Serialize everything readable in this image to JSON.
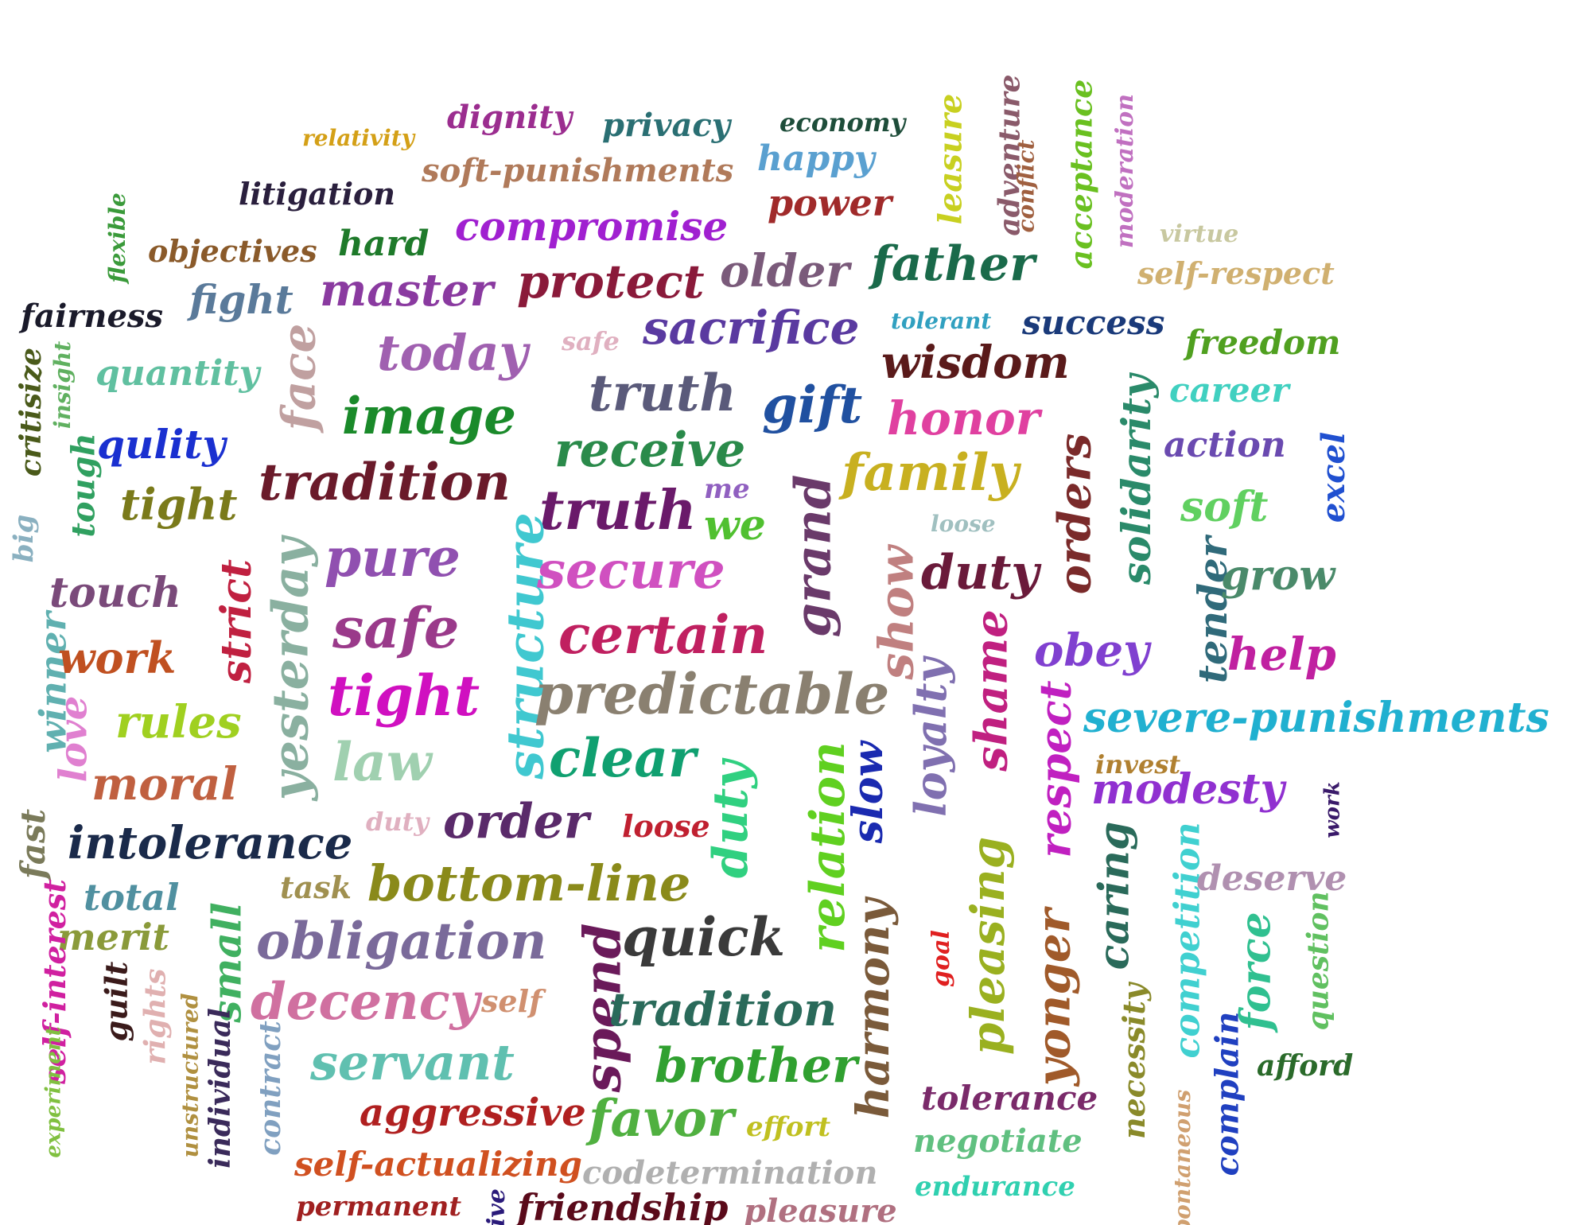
{
  "words": [
    {
      "text": "relativity",
      "color": "#d4a017"
    },
    {
      "text": "dignity",
      "color": "#9b2d8f"
    },
    {
      "text": "privacy",
      "color": "#2a6f73"
    },
    {
      "text": "economy",
      "color": "#1e4d3a"
    },
    {
      "text": "happy",
      "color": "#5aa0d0"
    },
    {
      "text": "soft-punishments",
      "color": "#b07a5a"
    },
    {
      "text": "litigation",
      "color": "#2a1f3d"
    },
    {
      "text": "power",
      "color": "#a02a2a"
    },
    {
      "text": "compromise",
      "color": "#a020d0"
    },
    {
      "text": "flexible",
      "color": "#3a9a3a"
    },
    {
      "text": "objectives",
      "color": "#8a5a2a"
    },
    {
      "text": "hard",
      "color": "#1e7a2a"
    },
    {
      "text": "leasure",
      "color": "#c8d020"
    },
    {
      "text": "adventure",
      "color": "#8a5a6a"
    },
    {
      "text": "conflict",
      "color": "#a06040"
    },
    {
      "text": "acceptance",
      "color": "#6ac020"
    },
    {
      "text": "moderation",
      "color": "#c070c0"
    },
    {
      "text": "virtue",
      "color": "#c8c8a0"
    },
    {
      "text": "self-respect",
      "color": "#d0b070"
    },
    {
      "text": "fairness",
      "color": "#1a1a2a"
    },
    {
      "text": "fight",
      "color": "#5a7a9a"
    },
    {
      "text": "master",
      "color": "#8a3aa0"
    },
    {
      "text": "protect",
      "color": "#8a1a3a"
    },
    {
      "text": "older",
      "color": "#7a5a7a"
    },
    {
      "text": "father",
      "color": "#1a6a4a"
    },
    {
      "text": "tolerant",
      "color": "#30a0c0"
    },
    {
      "text": "success",
      "color": "#1a3a7a"
    },
    {
      "text": "critisize",
      "color": "#4a5a1a"
    },
    {
      "text": "insight",
      "color": "#60b060"
    },
    {
      "text": "quantity",
      "color": "#60c0a0"
    },
    {
      "text": "face",
      "color": "#c0a0a0"
    },
    {
      "text": "today",
      "color": "#a060b0"
    },
    {
      "text": "safe",
      "color": "#e0b0c0"
    },
    {
      "text": "sacrifice",
      "color": "#5a3aa0"
    },
    {
      "text": "wisdom",
      "color": "#5a1a1a"
    },
    {
      "text": "freedom",
      "color": "#50a020"
    },
    {
      "text": "truth",
      "color": "#5a5a7a"
    },
    {
      "text": "image",
      "color": "#1a8a2a"
    },
    {
      "text": "gift",
      "color": "#2050a0"
    },
    {
      "text": "honor",
      "color": "#e040a0"
    },
    {
      "text": "career",
      "color": "#40d0c0"
    },
    {
      "text": "solidarity",
      "color": "#2a8a6a"
    },
    {
      "text": "tough",
      "color": "#30a060"
    },
    {
      "text": "qulity",
      "color": "#1a30d0"
    },
    {
      "text": "receive",
      "color": "#2a8a4a"
    },
    {
      "text": "action",
      "color": "#6a4ab0"
    },
    {
      "text": "excel",
      "color": "#2050d0"
    },
    {
      "text": "tradition",
      "color": "#6a1a2a"
    },
    {
      "text": "family",
      "color": "#c8b020"
    },
    {
      "text": "orders",
      "color": "#7a2a2a"
    },
    {
      "text": "tight",
      "color": "#7a7a1a"
    },
    {
      "text": "truth",
      "color": "#6a1a6a"
    },
    {
      "text": "me",
      "color": "#9060c0"
    },
    {
      "text": "big",
      "color": "#8ab0c0"
    },
    {
      "text": "grand",
      "color": "#6a3a6a"
    },
    {
      "text": "soft",
      "color": "#60d060"
    },
    {
      "text": "we",
      "color": "#50c030"
    },
    {
      "text": "loose",
      "color": "#a0c0c0"
    },
    {
      "text": "yesterday",
      "color": "#8ab0a0"
    },
    {
      "text": "pure",
      "color": "#9050b0"
    },
    {
      "text": "structure",
      "color": "#40c8d0"
    },
    {
      "text": "secure",
      "color": "#d050c0"
    },
    {
      "text": "show",
      "color": "#c08080"
    },
    {
      "text": "duty",
      "color": "#6a1a3a"
    },
    {
      "text": "tender",
      "color": "#306a7a"
    },
    {
      "text": "grow",
      "color": "#4a8a6a"
    },
    {
      "text": "strict",
      "color": "#c02040"
    },
    {
      "text": "touch",
      "color": "#7a4a7a"
    },
    {
      "text": "safe",
      "color": "#9a3a8a"
    },
    {
      "text": "certain",
      "color": "#c02060"
    },
    {
      "text": "winner",
      "color": "#60b0b0"
    },
    {
      "text": "work",
      "color": "#c05020"
    },
    {
      "text": "obey",
      "color": "#8040d0"
    },
    {
      "text": "help",
      "color": "#c020a0"
    },
    {
      "text": "shame",
      "color": "#c02080"
    },
    {
      "text": "loyalty",
      "color": "#8070b0"
    },
    {
      "text": "tight",
      "color": "#d010c0"
    },
    {
      "text": "predictable",
      "color": "#8a8070"
    },
    {
      "text": "love",
      "color": "#e080d0"
    },
    {
      "text": "rules",
      "color": "#a0d020"
    },
    {
      "text": "severe-punishments",
      "color": "#20b0d0"
    },
    {
      "text": "respect",
      "color": "#c020c0"
    },
    {
      "text": "law",
      "color": "#a0d0b0"
    },
    {
      "text": "clear",
      "color": "#10a070"
    },
    {
      "text": "relation",
      "color": "#60d020"
    },
    {
      "text": "slow",
      "color": "#1a2ab0"
    },
    {
      "text": "invest",
      "color": "#b08030"
    },
    {
      "text": "moral",
      "color": "#c06040"
    },
    {
      "text": "modesty",
      "color": "#9030d0"
    },
    {
      "text": "duty",
      "color": "#30d080"
    },
    {
      "text": "work",
      "color": "#3a1a6a"
    },
    {
      "text": "fast",
      "color": "#7a7a5a"
    },
    {
      "text": "duty",
      "color": "#e0b0c0"
    },
    {
      "text": "order",
      "color": "#5a2a6a"
    },
    {
      "text": "loose",
      "color": "#c02030"
    },
    {
      "text": "intolerance",
      "color": "#1a2a4a"
    },
    {
      "text": "caring",
      "color": "#2a6a5a"
    },
    {
      "text": "competition",
      "color": "#40d0d0"
    },
    {
      "text": "deserve",
      "color": "#b090b0"
    },
    {
      "text": "pleasing",
      "color": "#9ab020"
    },
    {
      "text": "total",
      "color": "#5090a0"
    },
    {
      "text": "task",
      "color": "#a09050"
    },
    {
      "text": "bottom-line",
      "color": "#8a8a1a"
    },
    {
      "text": "harmony",
      "color": "#7a5a3a"
    },
    {
      "text": "yonger",
      "color": "#a05a2a"
    },
    {
      "text": "merit",
      "color": "#8a9a3a"
    },
    {
      "text": "small",
      "color": "#40b060"
    },
    {
      "text": "obligation",
      "color": "#7a6a9a"
    },
    {
      "text": "spend",
      "color": "#6a1a5a"
    },
    {
      "text": "quick",
      "color": "#3a3a3a"
    },
    {
      "text": "force",
      "color": "#30c090"
    },
    {
      "text": "question",
      "color": "#60c060"
    },
    {
      "text": "self-interest",
      "color": "#d020a0"
    },
    {
      "text": "guilt",
      "color": "#3a1a1a"
    },
    {
      "text": "goal",
      "color": "#e02020"
    },
    {
      "text": "rights",
      "color": "#e0b0b0"
    },
    {
      "text": "decency",
      "color": "#d070a0"
    },
    {
      "text": "self",
      "color": "#d09070"
    },
    {
      "text": "tradition",
      "color": "#2a6a5a"
    },
    {
      "text": "necessity",
      "color": "#8a8a2a"
    },
    {
      "text": "experiment",
      "color": "#80c040"
    },
    {
      "text": "unstructured",
      "color": "#b09040"
    },
    {
      "text": "individual",
      "color": "#3a2a5a"
    },
    {
      "text": "contract",
      "color": "#80a0c0"
    },
    {
      "text": "servant",
      "color": "#60c0b0"
    },
    {
      "text": "brother",
      "color": "#30a030"
    },
    {
      "text": "complain",
      "color": "#2040c0"
    },
    {
      "text": "afford",
      "color": "#2a6a2a"
    },
    {
      "text": "tolerance",
      "color": "#7a2a6a"
    },
    {
      "text": "aggressive",
      "color": "#b02020"
    },
    {
      "text": "favor",
      "color": "#50b040"
    },
    {
      "text": "effort",
      "color": "#c0c020"
    },
    {
      "text": "negotiate",
      "color": "#60c080"
    },
    {
      "text": "spontaneous",
      "color": "#d0a070"
    },
    {
      "text": "self-actualizing",
      "color": "#d05020"
    },
    {
      "text": "codetermination",
      "color": "#b0b0b0"
    },
    {
      "text": "endurance",
      "color": "#30d0b0"
    },
    {
      "text": "permanent",
      "color": "#a02020"
    },
    {
      "text": "tive",
      "color": "#2a1a7a"
    },
    {
      "text": "friendship",
      "color": "#5a0a1a"
    },
    {
      "text": "pleasure",
      "color": "#b07080"
    }
  ]
}
